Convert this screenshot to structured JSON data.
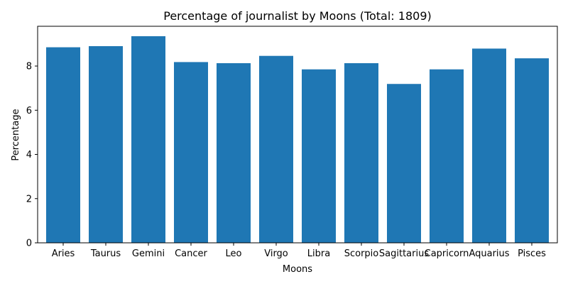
{
  "chart_data": {
    "type": "bar",
    "title": "Percentage of journalist by Moons (Total: 1809)",
    "xlabel": "Moons",
    "ylabel": "Percentage",
    "categories": [
      "Aries",
      "Taurus",
      "Gemini",
      "Cancer",
      "Leo",
      "Virgo",
      "Libra",
      "Scorpio",
      "Sagittarius",
      "Capricorn",
      "Aquarius",
      "Pisces"
    ],
    "values": [
      8.85,
      8.9,
      9.35,
      8.18,
      8.13,
      8.46,
      7.85,
      8.13,
      7.19,
      7.85,
      8.79,
      8.35
    ],
    "ylim": [
      0,
      9.8
    ],
    "yticks": [
      0,
      2,
      4,
      6,
      8
    ],
    "grid": false,
    "bar_color": "#1f77b4"
  }
}
